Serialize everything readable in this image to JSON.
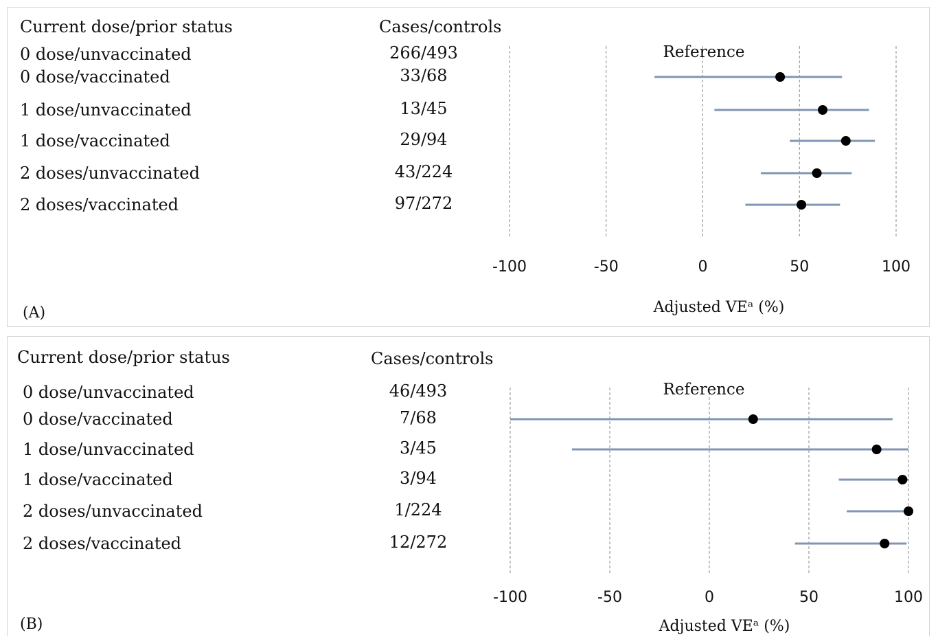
{
  "chart_data": [
    {
      "type": "forest",
      "panel_label": "(A)",
      "header_left": "Current dose/prior status",
      "header_right": "Cases/controls",
      "reference_label": "Reference",
      "xlabel": "Adjusted VEᵃ (%)",
      "xlim": [
        -100,
        100
      ],
      "xticks": [
        -100,
        -50,
        0,
        50,
        100
      ],
      "grid": "vertical dashed",
      "rows": [
        {
          "label": "0 dose/unvaccinated",
          "cases_controls": "266/493",
          "reference": true
        },
        {
          "label": "0 dose/vaccinated",
          "cases_controls": "33/68",
          "ve": 40,
          "lo": -25,
          "hi": 72
        },
        {
          "label": "1 dose/unvaccinated",
          "cases_controls": "13/45",
          "ve": 62,
          "lo": 6,
          "hi": 86
        },
        {
          "label": "1 dose/vaccinated",
          "cases_controls": "29/94",
          "ve": 74,
          "lo": 45,
          "hi": 89
        },
        {
          "label": "2 doses/unvaccinated",
          "cases_controls": "43/224",
          "ve": 59,
          "lo": 30,
          "hi": 77
        },
        {
          "label": "2 doses/vaccinated",
          "cases_controls": "97/272",
          "ve": 51,
          "lo": 22,
          "hi": 71
        }
      ]
    },
    {
      "type": "forest",
      "panel_label": "(B)",
      "header_left": "Current dose/prior status",
      "header_right": "Cases/controls",
      "reference_label": "Reference",
      "xlabel": "Adjusted VEᵃ (%)",
      "xlim": [
        -100,
        100
      ],
      "xticks": [
        -100,
        -50,
        0,
        50,
        100
      ],
      "grid": "vertical dashed",
      "rows": [
        {
          "label": "0 dose/unvaccinated",
          "cases_controls": "46/493",
          "reference": true
        },
        {
          "label": "0 dose/vaccinated",
          "cases_controls": "7/68",
          "ve": 22,
          "lo": -100,
          "hi": 92
        },
        {
          "label": "1 dose/unvaccinated",
          "cases_controls": "3/45",
          "ve": 84,
          "lo": -69,
          "hi": 100
        },
        {
          "label": "1 dose/vaccinated",
          "cases_controls": "3/94",
          "ve": 97,
          "lo": 65,
          "hi": 100
        },
        {
          "label": "2 doses/unvaccinated",
          "cases_controls": "1/224",
          "ve": 100,
          "lo": 69,
          "hi": 100
        },
        {
          "label": "2 doses/vaccinated",
          "cases_controls": "12/272",
          "ve": 88,
          "lo": 43,
          "hi": 99
        }
      ]
    }
  ],
  "colors": {
    "ci_line": "#8096b3",
    "point": "#000000",
    "grid": "#8a8a8a"
  }
}
